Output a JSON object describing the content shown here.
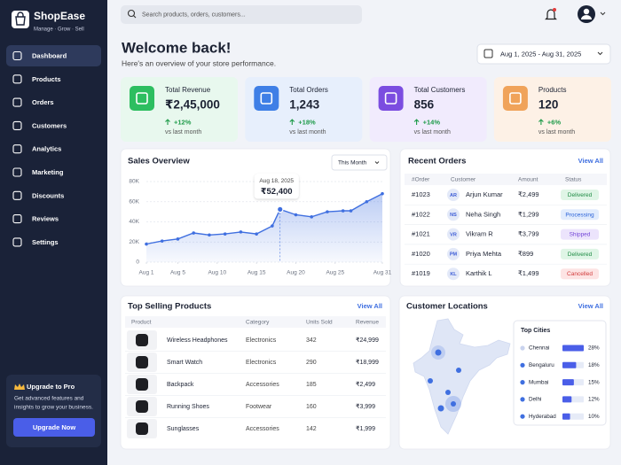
{
  "brand": {
    "name": "ShopEase",
    "tagline": "Manage · Grow · Sell"
  },
  "nav": {
    "items": [
      "Dashboard",
      "Products",
      "Orders",
      "Customers",
      "Analytics",
      "Marketing",
      "Discounts",
      "Reviews",
      "Settings"
    ],
    "active": 0
  },
  "upgrade": {
    "title": "Upgrade to Pro",
    "text": [
      "Get advanced features and",
      "insights to grow your business."
    ],
    "button": "Upgrade Now"
  },
  "search": {
    "placeholder": "Search products, orders, customers..."
  },
  "header": {
    "title": "Welcome back!",
    "subtitle": "Here's an overview of your store performance.",
    "date_range": "Aug 1, 2025 - Aug 31, 2025"
  },
  "kpis": [
    {
      "label": "Total Revenue",
      "value": "₹2,45,000",
      "change": "+12%",
      "note": "vs last month",
      "color": "#2dbe60",
      "background": "#e8f8ee"
    },
    {
      "label": "Total Orders",
      "value": "1,243",
      "change": "+18%",
      "note": "vs last month",
      "color": "#3f7fe6",
      "background": "#e7effc"
    },
    {
      "label": "Total Customers",
      "value": "856",
      "change": "+14%",
      "note": "vs last month",
      "color": "#7b4de0",
      "background": "#f1ebfd"
    },
    {
      "label": "Products",
      "value": "120",
      "change": "+6%",
      "note": "vs last month",
      "color": "#f0a35a",
      "background": "#fdf1e6"
    }
  ],
  "sales_overview": {
    "title": "Sales Overview",
    "period": "This Month",
    "chart": {
      "type": "line",
      "color": "#3f6fe0",
      "grid": true,
      "x": [
        1,
        3,
        5,
        7,
        9,
        11,
        13,
        15,
        17,
        18,
        20,
        22,
        24,
        26,
        27,
        29,
        31
      ],
      "values": [
        18000,
        21000,
        23000,
        29000,
        27000,
        28000,
        30000,
        28000,
        36000,
        52400,
        47000,
        45000,
        50000,
        51000,
        51000,
        60000,
        68000
      ],
      "xlim": [
        1,
        31
      ],
      "xticks": [
        {
          "value": 1,
          "label": "Aug 1"
        },
        {
          "value": 5,
          "label": "Aug 5"
        },
        {
          "value": 10,
          "label": "Aug 10"
        },
        {
          "value": 15,
          "label": "Aug 15"
        },
        {
          "value": 20,
          "label": "Aug 20"
        },
        {
          "value": 25,
          "label": "Aug 25"
        },
        {
          "value": 31,
          "label": "Aug 31"
        }
      ],
      "ylim": [
        0,
        80000
      ],
      "yticks": [
        0,
        {
          "value": 20000,
          "label": "20K"
        },
        {
          "value": 40000,
          "label": "40K"
        },
        {
          "value": 60000,
          "label": "60K"
        },
        {
          "value": 80000,
          "label": "80K"
        }
      ],
      "tooltip": {
        "point": 9,
        "date": "Aug 18, 2025",
        "value": "₹52,400"
      }
    }
  },
  "recent_orders": {
    "title": "Recent Orders",
    "link": "View All",
    "columns": [
      "#Order",
      "Customer",
      "Amount",
      "Status"
    ],
    "rows": [
      {
        "id": "#1023",
        "initials": "AR",
        "customer": "Arjun Kumar",
        "amount": "₹2,499",
        "status": "Delivered",
        "status_color": "#1d8a43",
        "status_background": "#dff5e6"
      },
      {
        "id": "#1022",
        "initials": "NS",
        "customer": "Neha Singh",
        "amount": "₹1,299",
        "status": "Processing",
        "status_color": "#2a62d8",
        "status_background": "#e1ecfd"
      },
      {
        "id": "#1021",
        "initials": "VR",
        "customer": "Vikram R",
        "amount": "₹3,799",
        "status": "Shipped",
        "status_color": "#7447d8",
        "status_background": "#ece4fc"
      },
      {
        "id": "#1020",
        "initials": "PM",
        "customer": "Priya Mehta",
        "amount": "₹899",
        "status": "Delivered",
        "status_color": "#1d8a43",
        "status_background": "#dff5e6"
      },
      {
        "id": "#1019",
        "initials": "KL",
        "customer": "Karthik L",
        "amount": "₹1,499",
        "status": "Cancelled",
        "status_color": "#d23c3c",
        "status_background": "#fde4e4"
      }
    ]
  },
  "top_products": {
    "title": "Top Selling Products",
    "link": "View All",
    "columns": [
      "Product",
      "Category",
      "Units Sold",
      "Revenue"
    ],
    "rows": [
      {
        "name": "Wireless Headphones",
        "category": "Electronics",
        "units": 342,
        "revenue": "₹24,999"
      },
      {
        "name": "Smart Watch",
        "category": "Electronics",
        "units": 290,
        "revenue": "₹18,999"
      },
      {
        "name": "Backpack",
        "category": "Accessories",
        "units": 185,
        "revenue": "₹2,499"
      },
      {
        "name": "Running Shoes",
        "category": "Footwear",
        "units": 160,
        "revenue": "₹3,999"
      },
      {
        "name": "Sunglasses",
        "category": "Accessories",
        "units": 142,
        "revenue": "₹1,999"
      }
    ]
  },
  "customer_locations": {
    "title": "Customer Locations",
    "link": "View All",
    "panel_title": "Top Cities",
    "cities": [
      {
        "name": "Chennai",
        "share": {
          "value": 28,
          "label": "28%"
        },
        "color": "#c9d3ee"
      },
      {
        "name": "Bengaluru",
        "share": {
          "value": 18,
          "label": "18%"
        },
        "color": "#3f6fe0"
      },
      {
        "name": "Mumbai",
        "share": {
          "value": 15,
          "label": "15%"
        },
        "color": "#3f6fe0"
      },
      {
        "name": "Delhi",
        "share": {
          "value": 12,
          "label": "12%"
        },
        "color": "#3f6fe0"
      },
      {
        "name": "Hyderabad",
        "share": {
          "value": 10,
          "label": "10%"
        },
        "color": "#3f6fe0"
      }
    ]
  }
}
